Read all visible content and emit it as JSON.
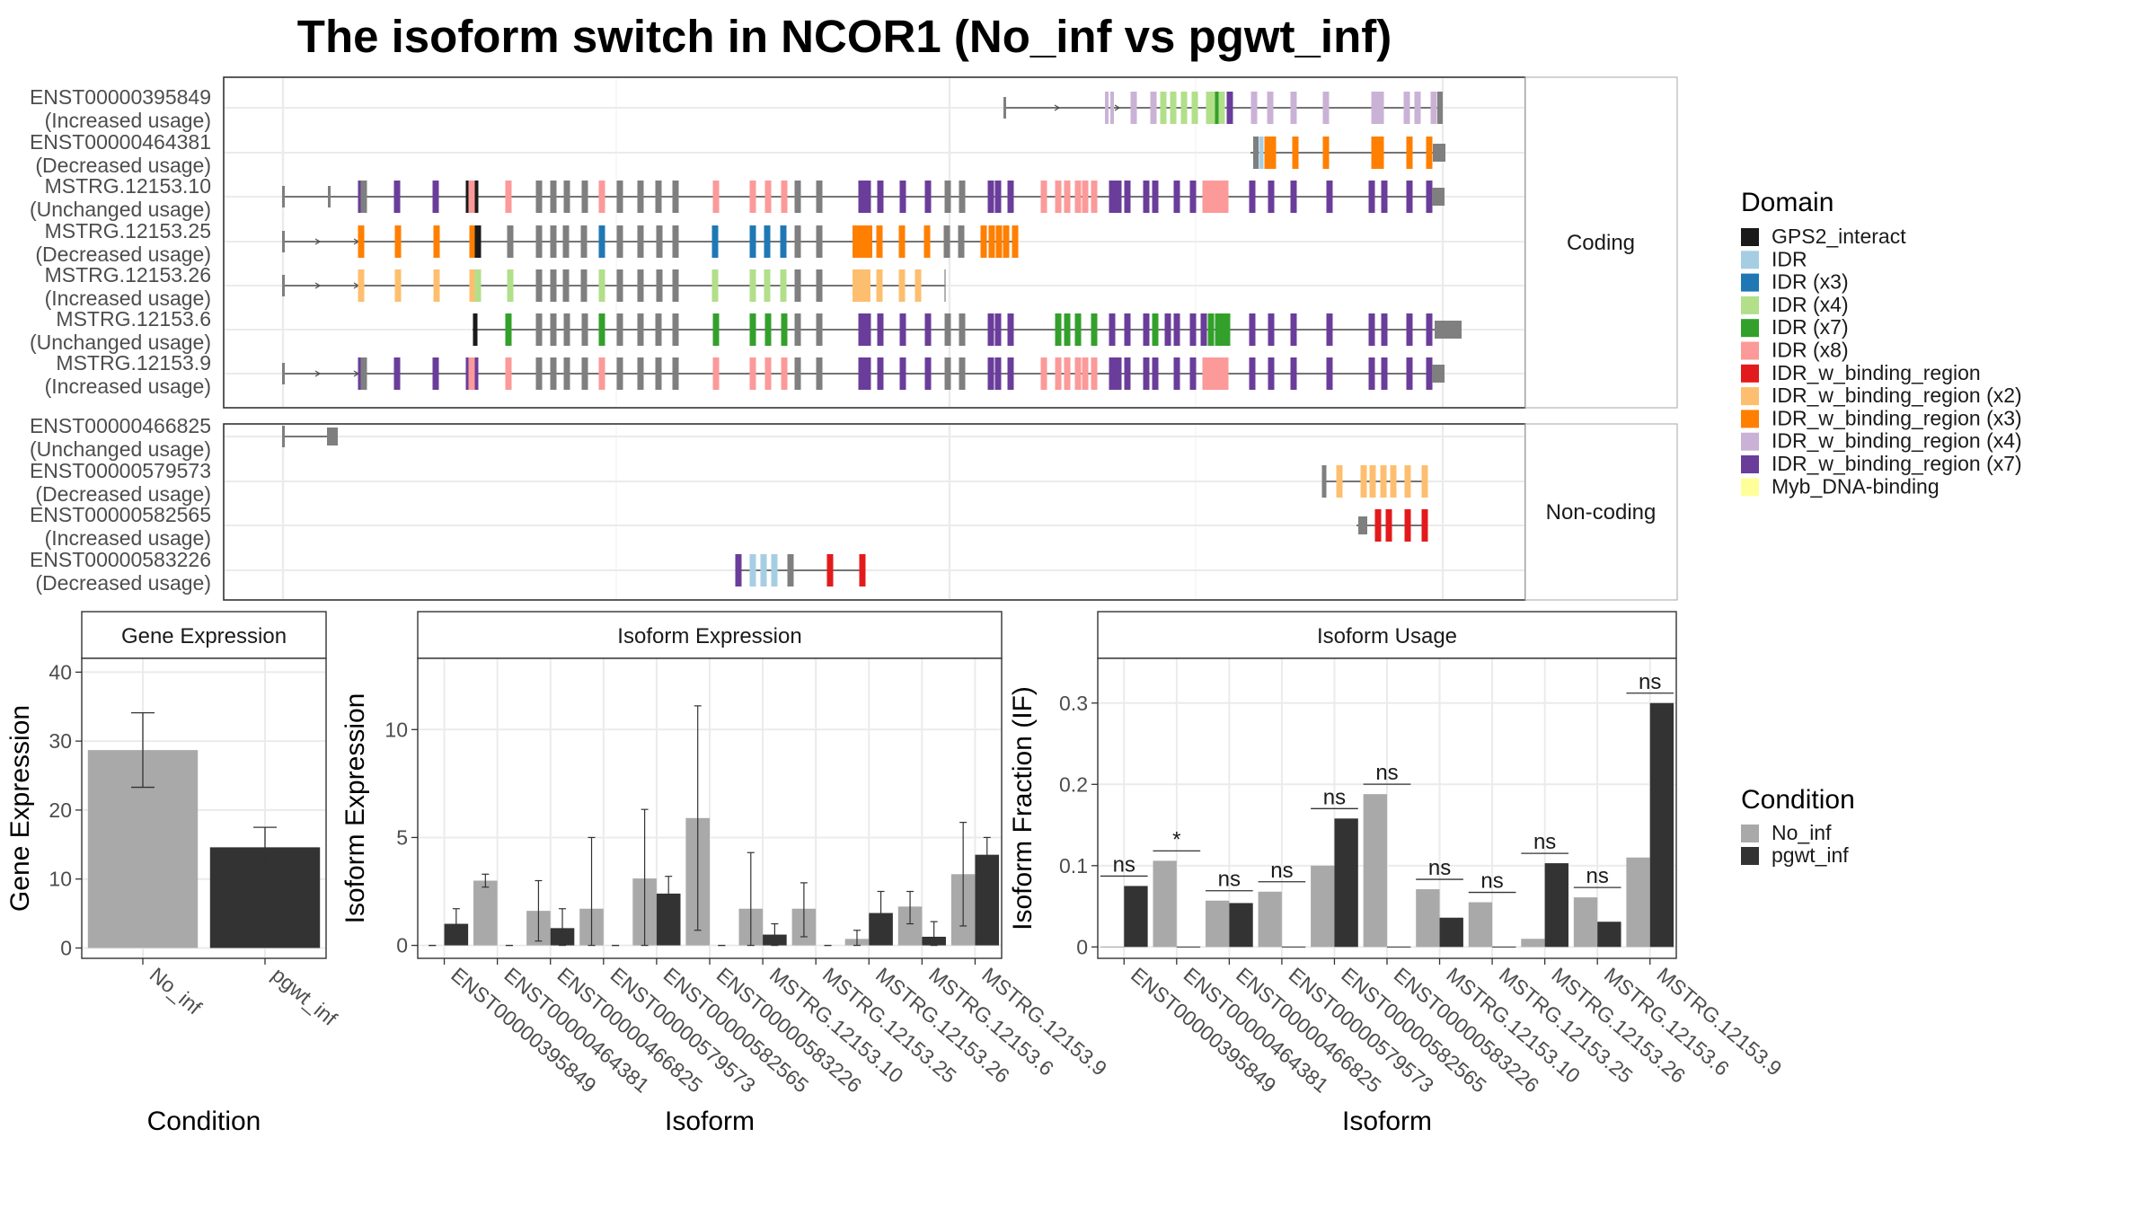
{
  "title": "The isoform switch in NCOR1 (No_inf vs pgwt_inf)",
  "domains": [
    {
      "name": "GPS2_interact",
      "color": "#1a1a1a"
    },
    {
      "name": "IDR",
      "color": "#a6cee3"
    },
    {
      "name": "IDR (x3)",
      "color": "#1f78b4"
    },
    {
      "name": "IDR (x4)",
      "color": "#b2df8a"
    },
    {
      "name": "IDR (x7)",
      "color": "#33a02c"
    },
    {
      "name": "IDR (x8)",
      "color": "#fb9a99"
    },
    {
      "name": "IDR_w_binding_region",
      "color": "#e31a1c"
    },
    {
      "name": "IDR_w_binding_region (x2)",
      "color": "#fdbf6f"
    },
    {
      "name": "IDR_w_binding_region (x3)",
      "color": "#ff7f00"
    },
    {
      "name": "IDR_w_binding_region (x4)",
      "color": "#cab2d6"
    },
    {
      "name": "IDR_w_binding_region (x7)",
      "color": "#6a3d9a"
    },
    {
      "name": "Myb_DNA-binding",
      "color": "#ffff99"
    }
  ],
  "structure": {
    "legend_title": "Domain",
    "coding_label": "Coding",
    "noncoding_label": "Non-coding",
    "coding": [
      {
        "id": "ENST00000395849",
        "usage": "(Increased usage)"
      },
      {
        "id": "ENST00000464381",
        "usage": "(Decreased usage)"
      },
      {
        "id": "MSTRG.12153.10",
        "usage": "(Unchanged usage)"
      },
      {
        "id": "MSTRG.12153.25",
        "usage": "(Decreased usage)"
      },
      {
        "id": "MSTRG.12153.26",
        "usage": "(Increased usage)"
      },
      {
        "id": "MSTRG.12153.6",
        "usage": "(Unchanged usage)"
      },
      {
        "id": "MSTRG.12153.9",
        "usage": "(Increased usage)"
      }
    ],
    "noncoding": [
      {
        "id": "ENST00000466825",
        "usage": "(Unchanged usage)"
      },
      {
        "id": "ENST00000579573",
        "usage": "(Decreased usage)"
      },
      {
        "id": "ENST00000582565",
        "usage": "(Increased usage)"
      },
      {
        "id": "ENST00000583226",
        "usage": "(Decreased usage)"
      }
    ]
  },
  "condition_legend": {
    "title": "Condition",
    "items": [
      {
        "name": "No_inf",
        "color": "#a9a9a9"
      },
      {
        "name": "pgwt_inf",
        "color": "#333333"
      }
    ]
  },
  "chart_data": [
    {
      "type": "bar",
      "title": "Gene Expression",
      "xlabel": "Condition",
      "ylabel": "Gene Expression",
      "categories": [
        "No_inf",
        "pgwt_inf"
      ],
      "values": [
        28.7,
        14.6
      ],
      "err_low": [
        23.3,
        11.6
      ],
      "err_high": [
        34.1,
        17.5
      ],
      "ylim": [
        -1.5,
        42
      ],
      "yticks": [
        0,
        10,
        20,
        30,
        40
      ],
      "colors": [
        "#a9a9a9",
        "#333333"
      ]
    },
    {
      "type": "bar",
      "title": "Isoform Expression",
      "xlabel": "Isoform",
      "ylabel": "Isoform Expression",
      "categories": [
        "ENST00000395849",
        "ENST00000464381",
        "ENST00000466825",
        "ENST00000579573",
        "ENST00000582565",
        "ENST00000583226",
        "MSTRG.12153.10",
        "MSTRG.12153.25",
        "MSTRG.12153.26",
        "MSTRG.12153.6",
        "MSTRG.12153.9"
      ],
      "ylim": [
        -0.6,
        13.3
      ],
      "yticks": [
        0,
        5,
        10
      ],
      "series": [
        {
          "name": "No_inf",
          "values": [
            0,
            3.0,
            1.6,
            1.7,
            3.1,
            5.9,
            1.7,
            1.7,
            0.3,
            1.8,
            3.3
          ],
          "err_low": [
            0,
            2.7,
            0.2,
            0,
            0,
            0.7,
            0,
            0.4,
            0,
            1.0,
            0.9
          ],
          "err_high": [
            0,
            3.3,
            3.0,
            5.0,
            6.3,
            11.1,
            4.3,
            2.9,
            0.7,
            2.5,
            5.7
          ]
        },
        {
          "name": "pgwt_inf",
          "values": [
            1.0,
            0,
            0.8,
            0,
            2.4,
            0,
            0.5,
            0,
            1.5,
            0.4,
            4.2
          ],
          "err_low": [
            0.3,
            0,
            0,
            0,
            1.6,
            0,
            0,
            0,
            0.4,
            0,
            3.4
          ],
          "err_high": [
            1.7,
            0,
            1.7,
            0,
            3.2,
            0,
            1.0,
            0,
            2.5,
            1.1,
            5.0
          ]
        }
      ]
    },
    {
      "type": "bar",
      "title": "Isoform Usage",
      "xlabel": "Isoform",
      "ylabel": "Isoform Fraction (IF)",
      "categories": [
        "ENST00000395849",
        "ENST00000464381",
        "ENST00000466825",
        "ENST00000579573",
        "ENST00000582565",
        "ENST00000583226",
        "MSTRG.12153.10",
        "MSTRG.12153.25",
        "MSTRG.12153.26",
        "MSTRG.12153.6",
        "MSTRG.12153.9"
      ],
      "ylim": [
        -0.014,
        0.355
      ],
      "yticks": [
        0.0,
        0.1,
        0.2,
        0.3
      ],
      "series": [
        {
          "name": "No_inf",
          "values": [
            0,
            0.106,
            0.057,
            0.068,
            0.1,
            0.188,
            0.071,
            0.055,
            0.01,
            0.061,
            0.11
          ]
        },
        {
          "name": "pgwt_inf",
          "values": [
            0.075,
            0,
            0.054,
            0,
            0.158,
            0,
            0.036,
            0,
            0.103,
            0.031,
            0.3
          ]
        }
      ],
      "significance": [
        "ns",
        "*",
        "ns",
        "ns",
        "ns",
        "ns",
        "ns",
        "ns",
        "ns",
        "ns",
        "ns"
      ]
    }
  ]
}
